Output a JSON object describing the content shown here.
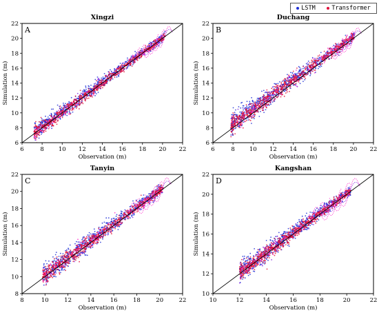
{
  "legend": {
    "lstm": "LSTM",
    "transformer": "Transformer"
  },
  "colors": {
    "lstm": "#1f2fd6",
    "transformer": "#e0103a",
    "transformer_alt": "#ff33cc",
    "lstm_alt": "#8a2be2",
    "refline": "#000000"
  },
  "chart_data": [
    {
      "type": "scatter",
      "letter": "A",
      "title": "Xingzi",
      "xlabel": "Observation (m)",
      "ylabel": "Simulation (m)",
      "xlim": [
        6,
        22
      ],
      "ylim": [
        6,
        22
      ],
      "xticks": [
        6,
        8,
        10,
        12,
        14,
        16,
        18,
        20,
        22
      ],
      "yticks": [
        6,
        8,
        10,
        12,
        14,
        16,
        18,
        20,
        22
      ],
      "series": [
        {
          "name": "LSTM",
          "x_range": [
            7.2,
            20.3
          ],
          "spread": 0.55,
          "bias": 0.2
        },
        {
          "name": "Transformer",
          "x_range": [
            7.2,
            20.3
          ],
          "spread": 0.45,
          "bias": 0.0
        }
      ]
    },
    {
      "type": "scatter",
      "letter": "B",
      "title": "Duchang",
      "xlabel": "Observation (m)",
      "ylabel": "Simulation (m)",
      "xlim": [
        6,
        22
      ],
      "ylim": [
        6,
        22
      ],
      "xticks": [
        6,
        8,
        10,
        12,
        14,
        16,
        18,
        20,
        22
      ],
      "yticks": [
        6,
        8,
        10,
        12,
        14,
        16,
        18,
        20,
        22
      ],
      "series": [
        {
          "name": "LSTM",
          "x_range": [
            7.8,
            20.1
          ],
          "spread": 0.7,
          "bias": 0.6
        },
        {
          "name": "Transformer",
          "x_range": [
            7.8,
            20.1
          ],
          "spread": 0.6,
          "bias": 0.5
        }
      ]
    },
    {
      "type": "scatter",
      "letter": "C",
      "title": "Tanyin",
      "xlabel": "Observation (m)",
      "ylabel": "Simulation (m)",
      "xlim": [
        8,
        22
      ],
      "ylim": [
        8,
        22
      ],
      "xticks": [
        8,
        10,
        12,
        14,
        16,
        18,
        20,
        22
      ],
      "yticks": [
        8,
        10,
        12,
        14,
        16,
        18,
        20,
        22
      ],
      "series": [
        {
          "name": "LSTM",
          "x_range": [
            9.8,
            20.3
          ],
          "spread": 0.6,
          "bias": 0.3
        },
        {
          "name": "Transformer",
          "x_range": [
            9.8,
            20.3
          ],
          "spread": 0.5,
          "bias": 0.2
        }
      ]
    },
    {
      "type": "scatter",
      "letter": "D",
      "title": "Kangshan",
      "xlabel": "Observation (m)",
      "ylabel": "Simulation (m)",
      "xlim": [
        10,
        22
      ],
      "ylim": [
        10,
        22
      ],
      "xticks": [
        10,
        12,
        14,
        16,
        18,
        20,
        22
      ],
      "yticks": [
        10,
        12,
        14,
        16,
        18,
        20,
        22
      ],
      "series": [
        {
          "name": "LSTM",
          "x_range": [
            12.0,
            20.3
          ],
          "spread": 0.5,
          "bias": 0.2
        },
        {
          "name": "Transformer",
          "x_range": [
            12.0,
            20.3
          ],
          "spread": 0.4,
          "bias": 0.1
        }
      ]
    }
  ]
}
